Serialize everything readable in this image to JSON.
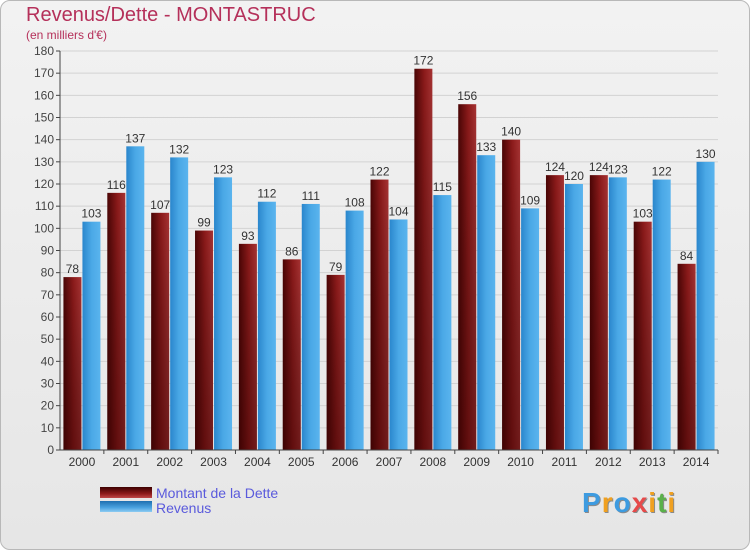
{
  "title": "Revenus/Dette - MONTASTRUC",
  "subtitle": "(en milliers d'€)",
  "chart_data": {
    "type": "bar",
    "categories": [
      "2000",
      "2001",
      "2002",
      "2003",
      "2004",
      "2005",
      "2006",
      "2007",
      "2008",
      "2009",
      "2010",
      "2011",
      "2012",
      "2013",
      "2014"
    ],
    "series": [
      {
        "name": "Montant de la Dette",
        "color": "#8b1a1a",
        "values": [
          78,
          116,
          107,
          99,
          93,
          86,
          79,
          122,
          172,
          156,
          140,
          124,
          124,
          103,
          84
        ]
      },
      {
        "name": "Revenus",
        "color": "#3d9be0",
        "values": [
          103,
          137,
          132,
          123,
          112,
          111,
          108,
          104,
          115,
          133,
          109,
          120,
          123,
          122,
          130
        ]
      }
    ],
    "ylim": [
      0,
      180
    ],
    "y_ticks": [
      0,
      10,
      20,
      30,
      40,
      50,
      60,
      70,
      80,
      90,
      100,
      110,
      120,
      130,
      140,
      150,
      160,
      170,
      180
    ],
    "grid": true,
    "legend": "bottom-left"
  },
  "legend": {
    "dette_label": "Montant de la Dette",
    "revenus_label": "Revenus"
  },
  "logo": {
    "letters": [
      "P",
      "r",
      "o",
      "x",
      "i",
      "t",
      "i"
    ],
    "colors": [
      "#3d9be0",
      "#f0a020",
      "#3d9be0",
      "#e64a4a",
      "#f0a020",
      "#5ab04a",
      "#f0a020"
    ]
  }
}
